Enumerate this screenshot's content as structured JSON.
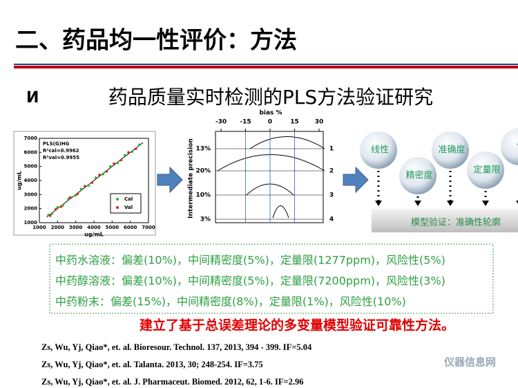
{
  "title": "二、药品均一性评价：方法",
  "subtitle": {
    "bullet": "И",
    "text": "药品质量实时检测的PLS方法验证研究"
  },
  "chart_data": [
    {
      "type": "scatter",
      "annotations": [
        "PLS(G)HG",
        "R²cal=0.9962",
        "R²val=0.9955"
      ],
      "xlabel": "ug/mL",
      "ylabel": "ug/mL",
      "xlim": [
        1000,
        7000
      ],
      "ylim": [
        1000,
        7000
      ],
      "xticks": [
        1000,
        2000,
        3000,
        4000,
        5000,
        6000,
        7000
      ],
      "yticks": [
        1000,
        2000,
        3000,
        4000,
        5000,
        6000,
        7000
      ],
      "series": [
        {
          "name": "Cal",
          "color": "#22bb22",
          "x": [
            1500,
            1700,
            2000,
            2300,
            2600,
            3000,
            3300,
            3700,
            4100,
            4500,
            4900,
            5300,
            5700,
            6100,
            6500
          ],
          "values": [
            1550,
            1650,
            2100,
            2250,
            2700,
            2950,
            3400,
            3650,
            4200,
            4450,
            5000,
            5250,
            5800,
            6050,
            6550
          ]
        },
        {
          "name": "Val",
          "color": "#dd2222",
          "x": [
            1600,
            1900,
            2200,
            2700,
            3100,
            3500,
            3900,
            4300,
            4700,
            5100,
            5500,
            5900,
            6300
          ],
          "values": [
            1500,
            1950,
            2150,
            2800,
            3050,
            3600,
            3850,
            4400,
            4650,
            5200,
            5450,
            6000,
            6250
          ]
        }
      ]
    }
  ],
  "precision": {
    "xlabel": "bias %",
    "xticks": [
      -30,
      -15,
      0,
      15,
      30
    ],
    "ylabel": "Intermediate precision",
    "rows": [
      "13%",
      "20%",
      "10%",
      "3%"
    ],
    "row_ids": [
      "1",
      "2",
      "3",
      "4"
    ]
  },
  "diagram": {
    "nodes": [
      "线性",
      "精密度",
      "准确度",
      "定量限",
      "专"
    ],
    "platform": "模型验证：准确性轮廓"
  },
  "results": [
    "中药水溶液：偏差(10%)，中间精密度(5%)，定量限(1277ppm)，风险性(5%)",
    "中药醇溶液：偏差(10%)，中间精密度(5%)，定量限(7200ppm)，风险性(3%)",
    "中药粉末：偏差(15%)，中间精密度(8%)，定量限(1%)，风险性(10%)"
  ],
  "conclusion": "建立了基于总误差理论的多变量模型验证可靠性方法。",
  "references": [
    "Zs, Wu, Yj, Qiao*, et. al. Bioresour. Technol. 137, 2013, 394 - 399.  IF=5.04",
    "Zs, Wu, Yj, Qiao*, et. al. Talanta. 2013, 30; 248-254.  IF=3.75",
    "Zs, Wu, Yj, Qiao*, et. al. J. Pharmaceut. Biomed. 2012, 62, 1-6. IF=2.96"
  ],
  "watermark": "仪器信息网"
}
